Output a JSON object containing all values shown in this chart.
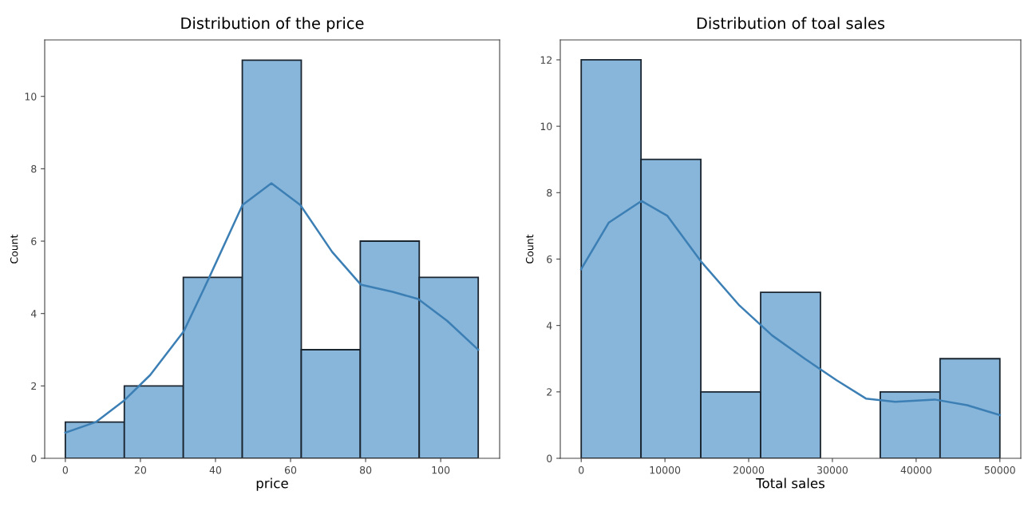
{
  "chart_data": [
    {
      "type": "histogram",
      "title": "Distribution of the price",
      "xlabel": "price",
      "ylabel": "Count",
      "bins": [
        0,
        15.714,
        31.429,
        47.143,
        62.857,
        78.571,
        94.286,
        110
      ],
      "values": [
        1,
        2,
        5,
        11,
        3,
        6,
        5
      ],
      "color": "#88b6da",
      "xlim": [
        -5.5,
        115.7
      ],
      "xticks": [
        0,
        20,
        40,
        60,
        80,
        100
      ],
      "ylim": [
        0,
        11.56
      ],
      "yticks": [
        0,
        2,
        4,
        6,
        8,
        10
      ],
      "grid": false,
      "series": [
        {
          "type": "line",
          "color": "#3c7fb5",
          "x": [
            0,
            8.1,
            15.7,
            22.6,
            31.5,
            37.9,
            47.2,
            54.9,
            62.6,
            71.1,
            78.7,
            87.2,
            94,
            101.7,
            110
          ],
          "values": [
            0.71,
            1.0,
            1.6,
            2.3,
            3.5,
            4.9,
            7.0,
            7.6,
            7.0,
            5.7,
            4.8,
            4.6,
            4.4,
            3.8,
            3.0
          ]
        }
      ]
    },
    {
      "type": "histogram",
      "title": "Distribution of toal sales",
      "xlabel": "Total sales",
      "ylabel": "Count",
      "bins": [
        0,
        7142.9,
        14285.7,
        21428.6,
        28571.4,
        35714.3,
        42857.1,
        50000
      ],
      "values": [
        12,
        9,
        2,
        5,
        0,
        2,
        3
      ],
      "color": "#88b6da",
      "xlim": [
        -2500,
        52500
      ],
      "xticks": [
        0,
        10000,
        20000,
        30000,
        40000,
        50000
      ],
      "ylim": [
        0,
        12.6
      ],
      "yticks": [
        0,
        2,
        4,
        6,
        8,
        10,
        12
      ],
      "grid": false,
      "series": [
        {
          "type": "line",
          "color": "#3c7fb5",
          "x": [
            0,
            3300,
            7200,
            10300,
            14400,
            18900,
            22800,
            26700,
            30500,
            34000,
            37500,
            42200,
            46100,
            50000
          ],
          "values": [
            5.7,
            7.1,
            7.75,
            7.3,
            5.9,
            4.6,
            3.7,
            3.0,
            2.35,
            1.8,
            1.7,
            1.77,
            1.6,
            1.3
          ]
        }
      ]
    }
  ]
}
